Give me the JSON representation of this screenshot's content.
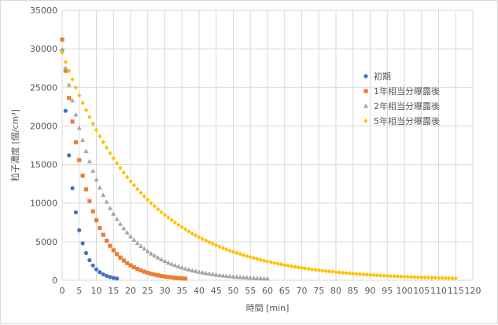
{
  "chart_data": {
    "type": "scatter",
    "xlabel": "時間 [min]",
    "ylabel": "粒子濃度 [個/cm³]",
    "xlim": [
      0,
      120
    ],
    "ylim": [
      0,
      35000
    ],
    "x_ticks": [
      0,
      5,
      10,
      15,
      20,
      25,
      30,
      35,
      40,
      45,
      50,
      55,
      60,
      65,
      70,
      75,
      80,
      85,
      90,
      95,
      100,
      105,
      110,
      115,
      120
    ],
    "y_ticks": [
      0,
      5000,
      10000,
      15000,
      20000,
      25000,
      30000,
      35000
    ],
    "grid": "on",
    "legend_position": "right",
    "series": [
      {
        "name": "初期",
        "marker": "circle",
        "color": "#4472C4",
        "start": 29800,
        "k": 0.305,
        "x_end": 16
      },
      {
        "name": "1年相当分曝露後",
        "marker": "square",
        "color": "#ED7D31",
        "start": 31200,
        "k": 0.139,
        "x_end": 36
      },
      {
        "name": "2年相当分曝露後",
        "marker": "triangle",
        "color": "#A5A5A5",
        "start": 29900,
        "k": 0.083,
        "x_end": 60
      },
      {
        "name": "5年相当分曝露後",
        "marker": "diamond",
        "color": "#FFC000",
        "start": 29500,
        "k": 0.0416,
        "x_end": 115
      }
    ]
  }
}
